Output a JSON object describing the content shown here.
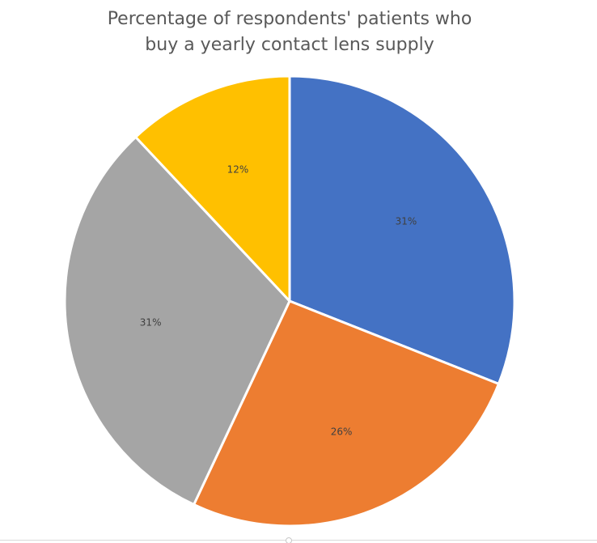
{
  "chart_data": {
    "type": "pie",
    "title_lines": [
      "Percentage of respondents' patients who",
      "buy a yearly contact lens supply"
    ],
    "slices": [
      {
        "value": 31,
        "label": "31%",
        "color": "#4472C4"
      },
      {
        "value": 26,
        "label": "26%",
        "color": "#ED7D31"
      },
      {
        "value": 31,
        "label": "31%",
        "color": "#A5A5A5"
      },
      {
        "value": 12,
        "label": "12%",
        "color": "#FFC000"
      }
    ],
    "start_angle": "12 o'clock",
    "direction": "clockwise",
    "legend": "none"
  }
}
